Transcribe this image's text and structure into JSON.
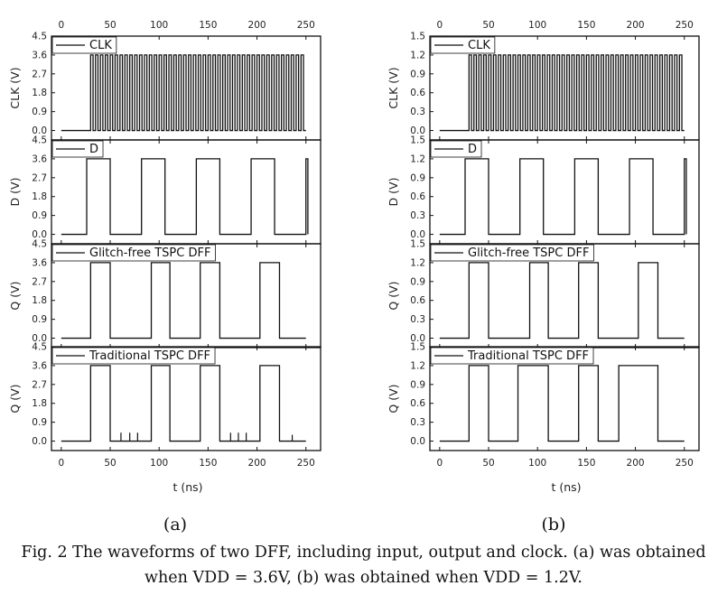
{
  "chart_data": [
    {
      "type": "line",
      "panel_label": "(a)",
      "vdd": 3.6,
      "x_ticks": [
        0,
        50,
        100,
        150,
        200,
        250
      ],
      "xlim": [
        -10,
        265
      ],
      "xlabel": "t (ns)",
      "subplots": [
        {
          "ylabel": "CLK (V)",
          "ylim": [
            -0.45,
            4.5
          ],
          "yticks": [
            "0.0",
            "0.9",
            "1.8",
            "2.7",
            "3.6",
            "4.5"
          ],
          "legend": "CLK",
          "signal": {
            "kind": "clock",
            "start": 30,
            "end": 250,
            "period": 5,
            "high": 3.6,
            "low": 0
          }
        },
        {
          "ylabel": "D (V)",
          "ylim": [
            -0.45,
            4.5
          ],
          "yticks": [
            "0.0",
            "0.9",
            "1.8",
            "2.7",
            "3.6",
            "4.5"
          ],
          "legend": "D",
          "signal": {
            "kind": "pulses",
            "high": 3.6,
            "low": 0,
            "pulses": [
              [
                26,
                50
              ],
              [
                82,
                106
              ],
              [
                138,
                162
              ],
              [
                194,
                218
              ],
              [
                250,
                252
              ]
            ]
          }
        },
        {
          "ylabel": "Q (V)",
          "ylim": [
            -0.45,
            4.5
          ],
          "yticks": [
            "0.0",
            "0.9",
            "1.8",
            "2.7",
            "3.6",
            "4.5"
          ],
          "legend": "Glitch-free TSPC DFF",
          "signal": {
            "kind": "pulses",
            "high": 3.6,
            "low": 0,
            "pulses": [
              [
                30,
                50
              ],
              [
                92,
                111
              ],
              [
                142,
                162
              ],
              [
                203,
                223
              ]
            ]
          }
        },
        {
          "ylabel": "Q (V)",
          "ylim": [
            -0.45,
            4.5
          ],
          "yticks": [
            "0.0",
            "0.9",
            "1.8",
            "2.7",
            "3.6",
            "4.5"
          ],
          "legend": "Traditional TSPC DFF",
          "signal": {
            "kind": "pulses",
            "high": 3.6,
            "low": 0,
            "pulses": [
              [
                30,
                50
              ],
              [
                92,
                111
              ],
              [
                142,
                162
              ],
              [
                203,
                223
              ]
            ],
            "glitches": [
              {
                "t": 61,
                "v": 0.4
              },
              {
                "t": 70,
                "v": 0.4
              },
              {
                "t": 78,
                "v": 0.4
              },
              {
                "t": 173,
                "v": 0.4
              },
              {
                "t": 181,
                "v": 0.4
              },
              {
                "t": 189,
                "v": 0.4
              },
              {
                "t": 236,
                "v": 0.3
              }
            ]
          }
        }
      ]
    },
    {
      "type": "line",
      "panel_label": "(b)",
      "vdd": 1.2,
      "x_ticks": [
        0,
        50,
        100,
        150,
        200,
        250
      ],
      "xlim": [
        -10,
        265
      ],
      "xlabel": "t (ns)",
      "subplots": [
        {
          "ylabel": "CLK (V)",
          "ylim": [
            -0.15,
            1.5
          ],
          "yticks": [
            "0.0",
            "0.3",
            "0.6",
            "0.9",
            "1.2",
            "1.5"
          ],
          "legend": "CLK",
          "signal": {
            "kind": "clock",
            "start": 30,
            "end": 250,
            "period": 5,
            "high": 1.2,
            "low": 0
          }
        },
        {
          "ylabel": "D (V)",
          "ylim": [
            -0.15,
            1.5
          ],
          "yticks": [
            "0.0",
            "0.3",
            "0.6",
            "0.9",
            "1.2",
            "1.5"
          ],
          "legend": "D",
          "signal": {
            "kind": "pulses",
            "high": 1.2,
            "low": 0,
            "pulses": [
              [
                26,
                50
              ],
              [
                82,
                106
              ],
              [
                138,
                162
              ],
              [
                194,
                218
              ],
              [
                250,
                252
              ]
            ]
          }
        },
        {
          "ylabel": "Q (V)",
          "ylim": [
            -0.15,
            1.5
          ],
          "yticks": [
            "0.0",
            "0.3",
            "0.6",
            "0.9",
            "1.2",
            "1.5"
          ],
          "legend": "Glitch-free TSPC DFF",
          "signal": {
            "kind": "pulses",
            "high": 1.2,
            "low": 0,
            "pulses": [
              [
                30,
                50
              ],
              [
                92,
                111
              ],
              [
                142,
                162
              ],
              [
                203,
                223
              ]
            ]
          }
        },
        {
          "ylabel": "Q (V)",
          "ylim": [
            -0.15,
            1.5
          ],
          "yticks": [
            "0.0",
            "0.3",
            "0.6",
            "0.9",
            "1.2",
            "1.5"
          ],
          "legend": "Traditional TSPC DFF",
          "signal": {
            "kind": "pulses",
            "high": 1.2,
            "low": 0,
            "pulses": [
              [
                30,
                50
              ],
              [
                80,
                111
              ],
              [
                142,
                162
              ],
              [
                183,
                223
              ]
            ]
          }
        }
      ]
    }
  ],
  "panel_labels": {
    "a": "(a)",
    "b": "(b)"
  },
  "caption": {
    "line1": "Fig. 2 The waveforms of two DFF, including input, output and clock. (a) was obtained",
    "line2": "when VDD = 3.6V, (b) was obtained when VDD = 1.2V."
  }
}
